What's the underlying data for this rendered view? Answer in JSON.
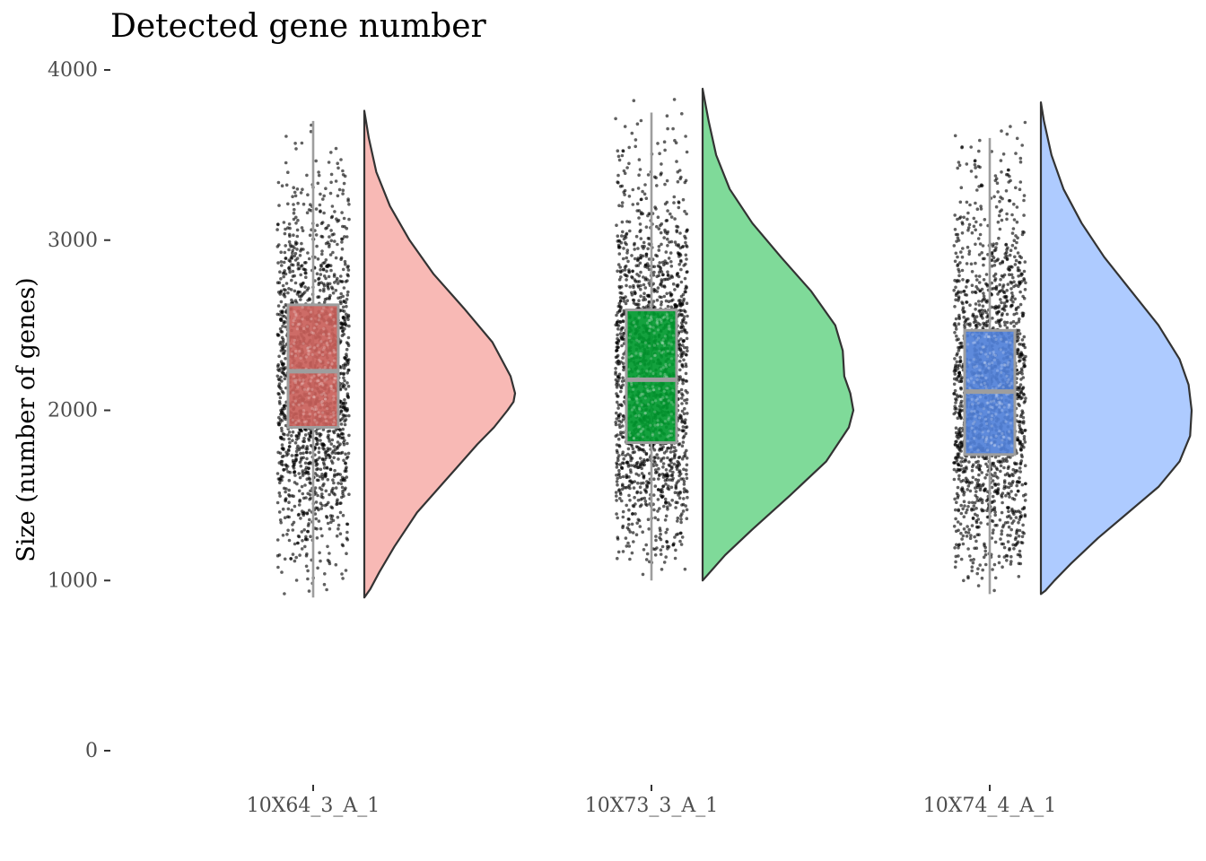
{
  "chart_data": {
    "type": "raincloud",
    "title": "Detected gene number",
    "xlabel": "",
    "ylabel": "Size (number of genes)",
    "ylim": [
      0,
      4000
    ],
    "yticks": [
      0,
      1000,
      2000,
      3000,
      4000
    ],
    "grid": false,
    "legend": "none",
    "categories": [
      "10X64_3_A_1",
      "10X73_3_A_1",
      "10X74_4_A_1"
    ],
    "groups": [
      {
        "name": "10X64_3_A_1",
        "fill": "#f8b9b5",
        "box_fill": "#c9605a",
        "box": {
          "min": 900,
          "q1": 1900,
          "median": 2230,
          "q3": 2620,
          "max": 3700
        },
        "density": {
          "y": [
            900,
            950,
            1050,
            1200,
            1400,
            1600,
            1800,
            1900,
            2000,
            2050,
            2100,
            2200,
            2400,
            2600,
            2800,
            3000,
            3200,
            3400,
            3600,
            3760
          ],
          "d": [
            0.0,
            0.04,
            0.1,
            0.2,
            0.35,
            0.55,
            0.75,
            0.86,
            0.95,
            0.99,
            1.0,
            0.97,
            0.85,
            0.66,
            0.46,
            0.3,
            0.17,
            0.08,
            0.03,
            0.0
          ]
        }
      },
      {
        "name": "10X73_3_A_1",
        "fill": "#7fda99",
        "box_fill": "#00992e",
        "box": {
          "min": 1000,
          "q1": 1810,
          "median": 2180,
          "q3": 2590,
          "max": 3750
        },
        "density": {
          "y": [
            1000,
            1050,
            1150,
            1300,
            1500,
            1700,
            1900,
            2000,
            2100,
            2200,
            2350,
            2500,
            2700,
            2900,
            3100,
            3300,
            3500,
            3700,
            3890
          ],
          "d": [
            0.0,
            0.05,
            0.15,
            0.33,
            0.58,
            0.82,
            0.97,
            1.0,
            0.98,
            0.94,
            0.93,
            0.88,
            0.72,
            0.52,
            0.33,
            0.18,
            0.09,
            0.04,
            0.0
          ]
        }
      },
      {
        "name": "10X74_4_A_1",
        "fill": "#aecbff",
        "box_fill": "#5080d8",
        "box": {
          "min": 920,
          "q1": 1740,
          "median": 2110,
          "q3": 2470,
          "max": 3600
        },
        "density": {
          "y": [
            920,
            940,
            1000,
            1100,
            1250,
            1400,
            1550,
            1700,
            1850,
            2000,
            2150,
            2300,
            2500,
            2700,
            2900,
            3100,
            3300,
            3500,
            3700,
            3810
          ],
          "d": [
            0.0,
            0.03,
            0.09,
            0.2,
            0.38,
            0.58,
            0.78,
            0.92,
            0.99,
            1.0,
            0.98,
            0.92,
            0.78,
            0.6,
            0.42,
            0.27,
            0.15,
            0.07,
            0.02,
            0.0
          ]
        }
      }
    ]
  }
}
